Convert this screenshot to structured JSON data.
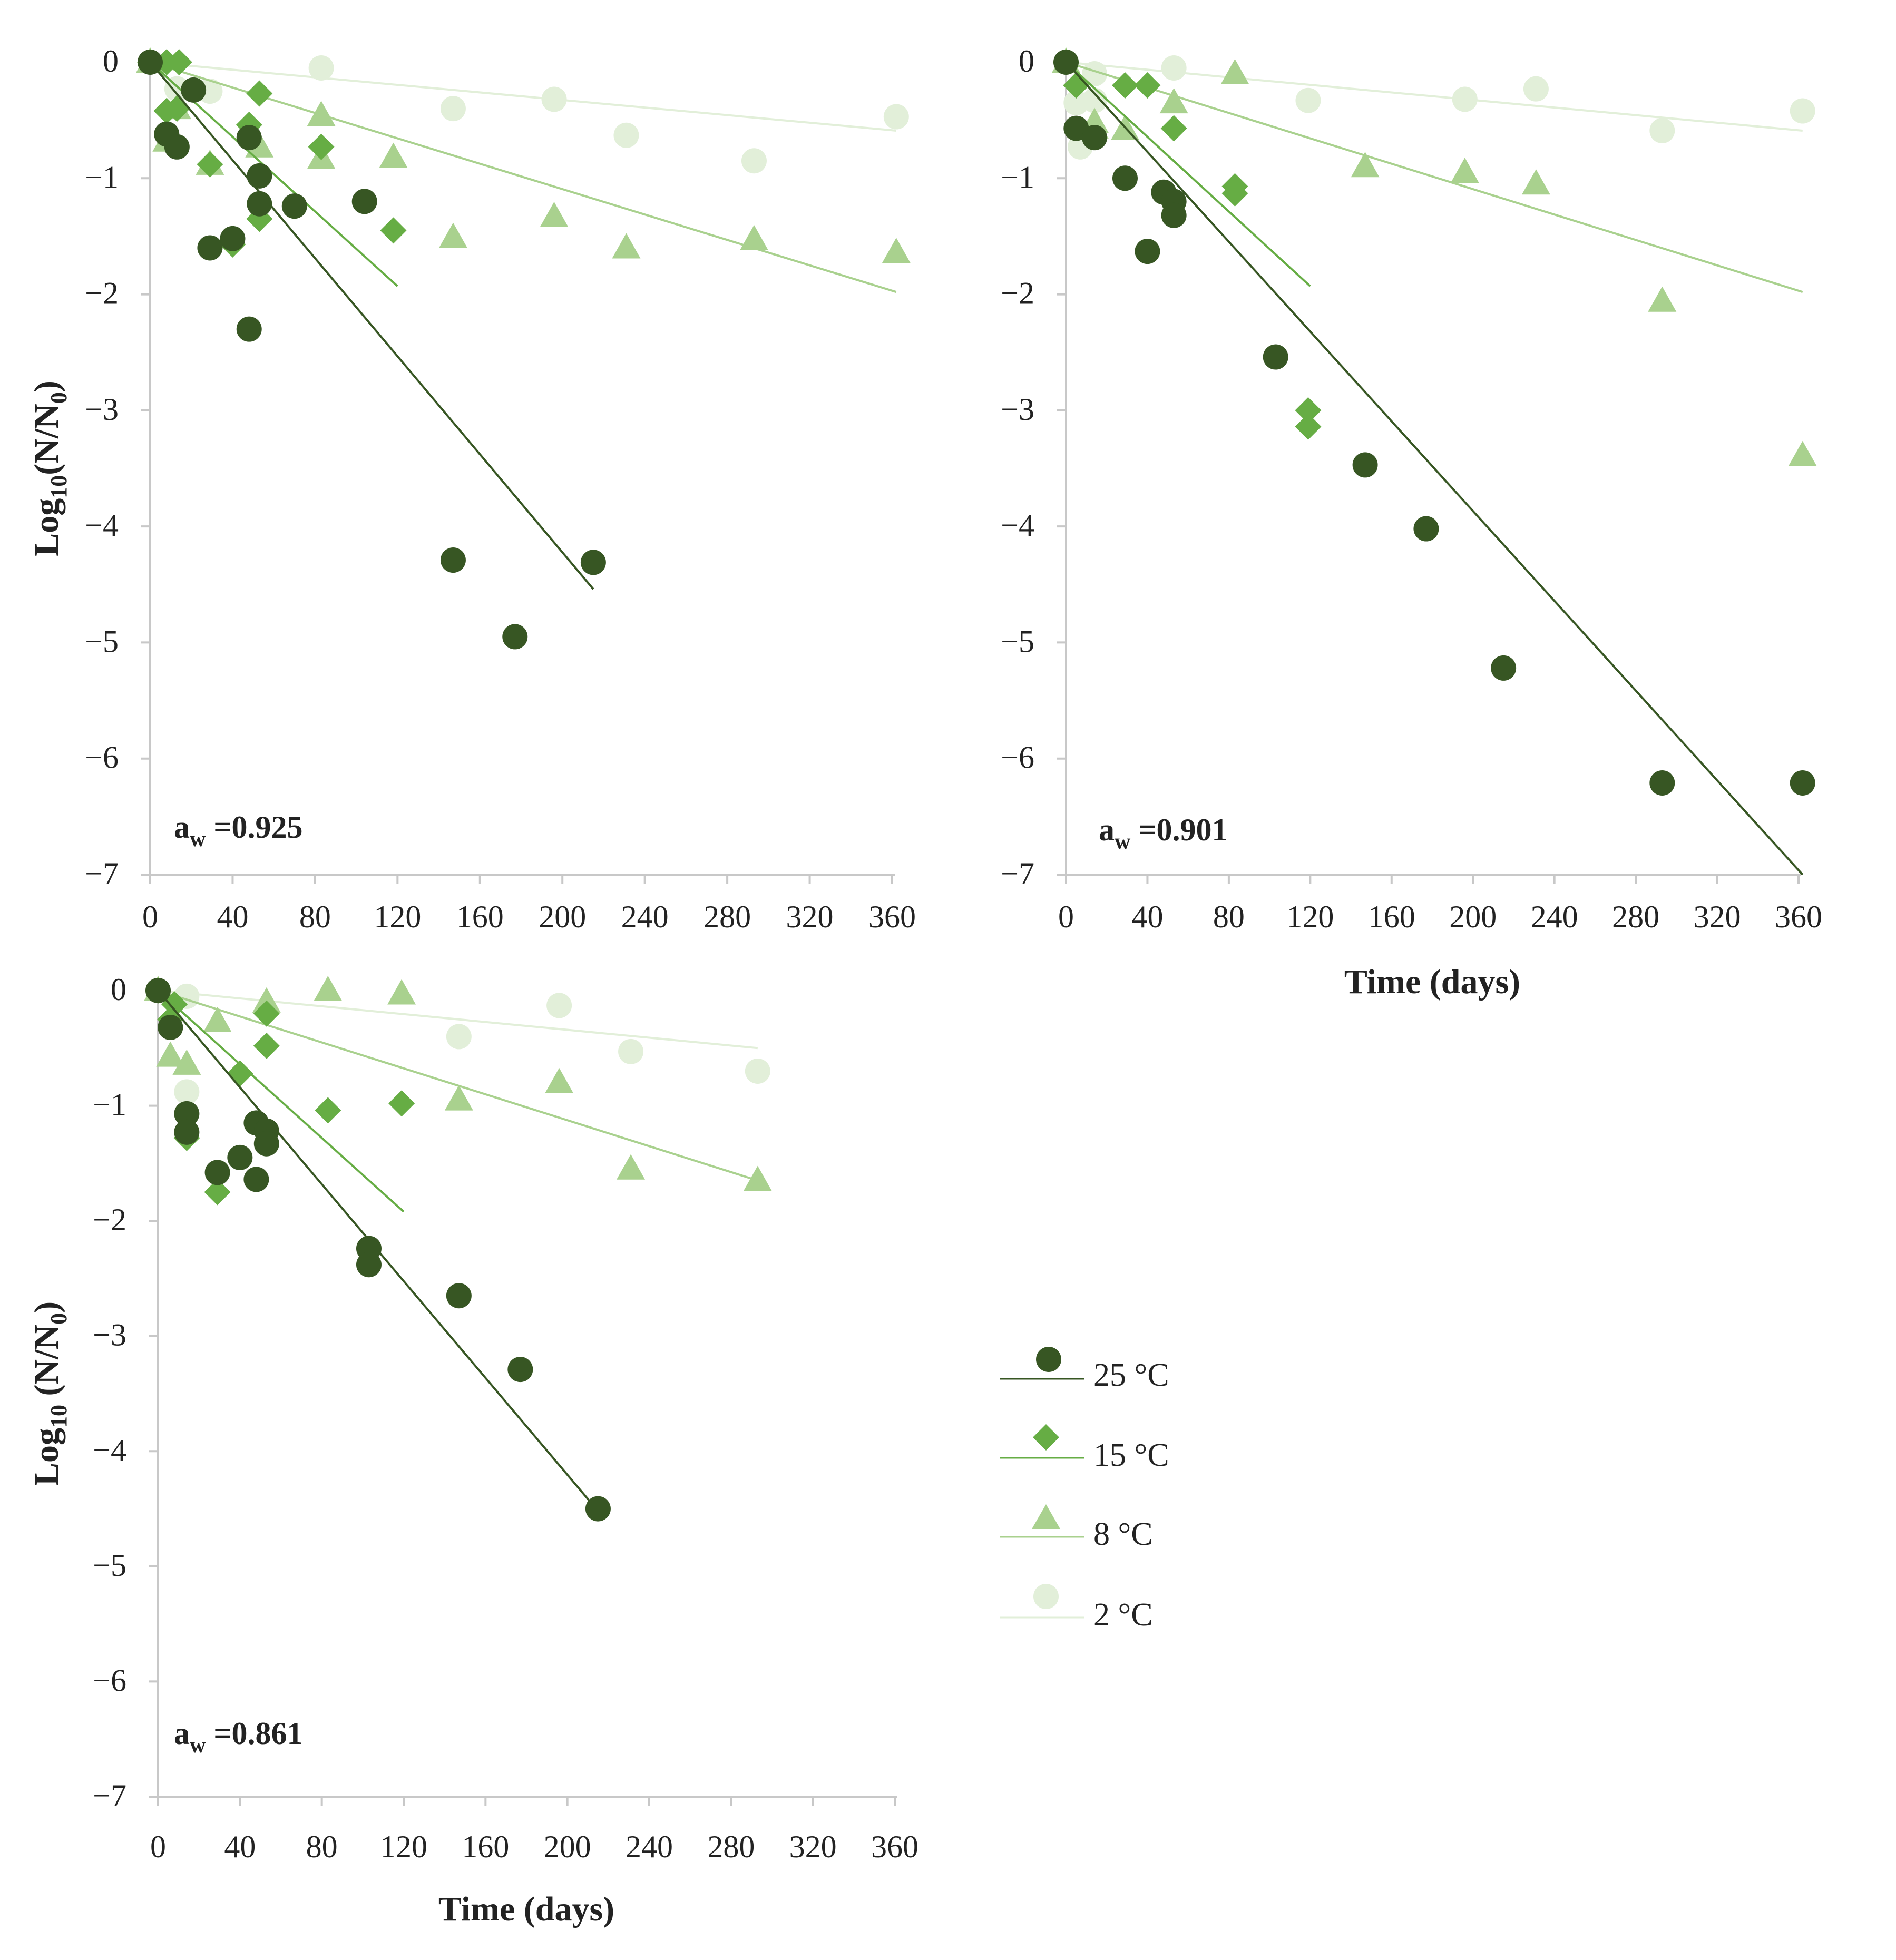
{
  "colors": {
    "axis": "#c8c8c8",
    "text": "#222222",
    "c25": "#375623",
    "c15": "#66ad44",
    "c8": "#a9d18e",
    "c2": "#e2efd9"
  },
  "legend": {
    "items": [
      {
        "label": "25 °C",
        "marker": "circle",
        "color_key": "c25"
      },
      {
        "label": "15 °C",
        "marker": "diamond",
        "color_key": "c15"
      },
      {
        "label": "8 °C",
        "marker": "triangle",
        "color_key": "c8"
      },
      {
        "label": "2 °C",
        "marker": "circle",
        "color_key": "c2"
      }
    ]
  },
  "chart_data": [
    {
      "type": "scatter",
      "annotation": {
        "main": "a",
        "sub": "w",
        "rest": " =0.925"
      },
      "ylabel": {
        "main": "Log",
        "sub": "10",
        "mid": "(N/N",
        "sub2": "0",
        "end": ")"
      },
      "xlabel": "",
      "xlim": [
        0,
        360
      ],
      "ylim": [
        -7,
        0
      ],
      "xticks": [
        0,
        40,
        80,
        120,
        160,
        200,
        240,
        280,
        320,
        360
      ],
      "xtick_labels": [
        "0",
        "40",
        "80",
        "120",
        "160",
        "200",
        "240",
        "280",
        "320",
        "360"
      ],
      "yticks": [
        0,
        -1,
        -2,
        -3,
        -4,
        -5,
        -6,
        -7
      ],
      "ytick_labels": [
        "0",
        "−1",
        "−2",
        "−3",
        "−4",
        "−5",
        "−6",
        "−7"
      ],
      "series": [
        {
          "name": "25 °C",
          "marker": "circle",
          "color_key": "c25",
          "points": [
            [
              0,
              0
            ],
            [
              8,
              -0.62
            ],
            [
              13,
              -0.73
            ],
            [
              21,
              -0.24
            ],
            [
              29,
              -1.6
            ],
            [
              40,
              -1.52
            ],
            [
              48,
              -2.3
            ],
            [
              48,
              -0.65
            ],
            [
              53,
              -0.98
            ],
            [
              53,
              -1.22
            ],
            [
              70,
              -1.24
            ],
            [
              104,
              -1.2
            ],
            [
              147,
              -4.29
            ],
            [
              177,
              -4.95
            ],
            [
              215,
              -4.31
            ]
          ],
          "fit": [
            [
              0,
              0
            ],
            [
              215,
              -4.54
            ]
          ]
        },
        {
          "name": "15 °C",
          "marker": "diamond",
          "color_key": "c15",
          "points": [
            [
              0,
              0
            ],
            [
              8,
              -0.42
            ],
            [
              13,
              -0.4
            ],
            [
              8,
              0
            ],
            [
              14,
              0
            ],
            [
              29,
              -0.88
            ],
            [
              40,
              -1.57
            ],
            [
              48,
              -0.54
            ],
            [
              53,
              -1.35
            ],
            [
              53,
              -0.27
            ],
            [
              83,
              -0.73
            ],
            [
              118,
              -1.45
            ]
          ],
          "fit": [
            [
              0,
              0
            ],
            [
              120,
              -1.93
            ]
          ]
        },
        {
          "name": "8 °C",
          "marker": "triangle",
          "color_key": "c8",
          "points": [
            [
              0,
              0
            ],
            [
              8,
              -0.68
            ],
            [
              13,
              -0.4
            ],
            [
              29,
              -0.88
            ],
            [
              53,
              -0.73
            ],
            [
              83,
              -0.46
            ],
            [
              83,
              -0.83
            ],
            [
              118,
              -0.82
            ],
            [
              147,
              -1.51
            ],
            [
              196,
              -1.33
            ],
            [
              231,
              -1.6
            ],
            [
              293,
              -1.53
            ],
            [
              362,
              -1.64
            ]
          ],
          "fit": [
            [
              0,
              0
            ],
            [
              362,
              -1.98
            ]
          ]
        },
        {
          "name": "2 °C",
          "marker": "circle",
          "color_key": "c2",
          "points": [
            [
              0,
              0
            ],
            [
              13,
              -0.23
            ],
            [
              29,
              -0.25
            ],
            [
              83,
              -0.05
            ],
            [
              147,
              -0.4
            ],
            [
              196,
              -0.32
            ],
            [
              231,
              -0.63
            ],
            [
              293,
              -0.85
            ],
            [
              362,
              -0.47
            ]
          ],
          "fit": [
            [
              0,
              0
            ],
            [
              362,
              -0.59
            ]
          ]
        }
      ]
    },
    {
      "type": "scatter",
      "annotation": {
        "main": "a",
        "sub": "w",
        "rest": " =0.901"
      },
      "ylabel": null,
      "xlabel": "Time (days)",
      "xlim": [
        0,
        360
      ],
      "ylim": [
        -7,
        0
      ],
      "xticks": [
        0,
        40,
        80,
        120,
        160,
        200,
        240,
        280,
        320,
        360
      ],
      "xtick_labels": [
        "0",
        "40",
        "80",
        "120",
        "160",
        "200",
        "240",
        "280",
        "320",
        "360"
      ],
      "yticks": [
        0,
        -1,
        -2,
        -3,
        -4,
        -5,
        -6,
        -7
      ],
      "ytick_labels": [
        "0",
        "−1",
        "−2",
        "−3",
        "−4",
        "−5",
        "−6",
        "−7"
      ],
      "series": [
        {
          "name": "25 °C",
          "marker": "circle",
          "color_key": "c25",
          "points": [
            [
              0,
              0
            ],
            [
              5,
              -0.57
            ],
            [
              14,
              -0.65
            ],
            [
              29,
              -1.0
            ],
            [
              48,
              -1.12
            ],
            [
              53,
              -1.2
            ],
            [
              53,
              -1.32
            ],
            [
              40,
              -1.63
            ],
            [
              103,
              -2.54
            ],
            [
              147,
              -3.47
            ],
            [
              177,
              -4.02
            ],
            [
              215,
              -5.22
            ],
            [
              293,
              -6.21
            ],
            [
              362,
              -6.21
            ]
          ],
          "fit": [
            [
              0,
              0
            ],
            [
              362,
              -7.0
            ]
          ]
        },
        {
          "name": "15 °C",
          "marker": "diamond",
          "color_key": "c15",
          "points": [
            [
              0,
              0
            ],
            [
              5,
              -0.2
            ],
            [
              29,
              -0.2
            ],
            [
              40,
              -0.2
            ],
            [
              53,
              -0.57
            ],
            [
              83,
              -1.07
            ],
            [
              83,
              -1.13
            ],
            [
              119,
              -3.0
            ],
            [
              119,
              -3.14
            ]
          ],
          "fit": [
            [
              0,
              0
            ],
            [
              120,
              -1.93
            ]
          ]
        },
        {
          "name": "8 °C",
          "marker": "triangle",
          "color_key": "c8",
          "points": [
            [
              0,
              0
            ],
            [
              14,
              -0.52
            ],
            [
              14,
              -0.57
            ],
            [
              29,
              -0.58
            ],
            [
              53,
              -0.35
            ],
            [
              83,
              -0.1
            ],
            [
              147,
              -0.9
            ],
            [
              196,
              -0.95
            ],
            [
              231,
              -1.05
            ],
            [
              293,
              -2.06
            ],
            [
              362,
              -3.39
            ]
          ],
          "fit": [
            [
              0,
              0
            ],
            [
              362,
              -1.98
            ]
          ]
        },
        {
          "name": "2 °C",
          "marker": "circle",
          "color_key": "c2",
          "points": [
            [
              0,
              0
            ],
            [
              5,
              -0.35
            ],
            [
              7,
              -0.73
            ],
            [
              14,
              -0.1
            ],
            [
              14,
              -0.33
            ],
            [
              53,
              -0.05
            ],
            [
              119,
              -0.33
            ],
            [
              196,
              -0.32
            ],
            [
              231,
              -0.23
            ],
            [
              293,
              -0.59
            ],
            [
              362,
              -0.42
            ]
          ],
          "fit": [
            [
              0,
              0
            ],
            [
              362,
              -0.59
            ]
          ]
        }
      ]
    },
    {
      "type": "scatter",
      "annotation": {
        "main": "a",
        "sub": "w",
        "rest": " =0.861"
      },
      "ylabel": {
        "main": "Log",
        "sub": "10",
        "mid": " (N/N",
        "sub2": "0",
        "end": ")"
      },
      "xlabel": "Time (days)",
      "xlim": [
        0,
        360
      ],
      "ylim": [
        -7,
        0
      ],
      "xticks": [
        0,
        40,
        80,
        120,
        160,
        200,
        240,
        280,
        320,
        360
      ],
      "xtick_labels": [
        "0",
        "40",
        "80",
        "120",
        "160",
        "200",
        "240",
        "280",
        "320",
        "360"
      ],
      "yticks": [
        0,
        -1,
        -2,
        -3,
        -4,
        -5,
        -6,
        -7
      ],
      "ytick_labels": [
        "0",
        "−1",
        "−2",
        "−3",
        "−4",
        "−5",
        "−6",
        "−7"
      ],
      "series": [
        {
          "name": "25 °C",
          "marker": "circle",
          "color_key": "c25",
          "points": [
            [
              0,
              0
            ],
            [
              6,
              -0.32
            ],
            [
              14,
              -1.07
            ],
            [
              14,
              -1.23
            ],
            [
              29,
              -1.58
            ],
            [
              40,
              -1.45
            ],
            [
              48,
              -1.15
            ],
            [
              48,
              -1.64
            ],
            [
              53,
              -1.22
            ],
            [
              53,
              -1.33
            ],
            [
              103,
              -2.24
            ],
            [
              103,
              -2.38
            ],
            [
              147,
              -2.65
            ],
            [
              177,
              -3.29
            ],
            [
              215,
              -4.5
            ]
          ],
          "fit": [
            [
              0,
              0
            ],
            [
              215,
              -4.52
            ]
          ]
        },
        {
          "name": "15 °C",
          "marker": "diamond",
          "color_key": "c15",
          "points": [
            [
              0,
              0
            ],
            [
              6,
              -0.25
            ],
            [
              8,
              -0.12
            ],
            [
              14,
              -1.28
            ],
            [
              29,
              -1.75
            ],
            [
              40,
              -0.72
            ],
            [
              53,
              -0.2
            ],
            [
              53,
              -0.48
            ],
            [
              83,
              -1.04
            ],
            [
              119,
              -0.98
            ]
          ],
          "fit": [
            [
              0,
              0
            ],
            [
              120,
              -1.92
            ]
          ]
        },
        {
          "name": "8 °C",
          "marker": "triangle",
          "color_key": "c8",
          "points": [
            [
              0,
              0
            ],
            [
              6,
              -0.57
            ],
            [
              14,
              -0.64
            ],
            [
              29,
              -0.27
            ],
            [
              53,
              -0.1
            ],
            [
              83,
              0
            ],
            [
              119,
              -0.03
            ],
            [
              147,
              -0.95
            ],
            [
              196,
              -0.8
            ],
            [
              231,
              -1.55
            ],
            [
              293,
              -1.65
            ]
          ],
          "fit": [
            [
              0,
              0
            ],
            [
              293,
              -1.65
            ]
          ]
        },
        {
          "name": "2 °C",
          "marker": "circle",
          "color_key": "c2",
          "points": [
            [
              0,
              0
            ],
            [
              14,
              -0.05
            ],
            [
              14,
              -0.88
            ],
            [
              147,
              -0.4
            ],
            [
              196,
              -0.13
            ],
            [
              231,
              -0.53
            ],
            [
              293,
              -0.7
            ]
          ],
          "fit": [
            [
              0,
              0
            ],
            [
              293,
              -0.5
            ]
          ]
        }
      ]
    }
  ]
}
